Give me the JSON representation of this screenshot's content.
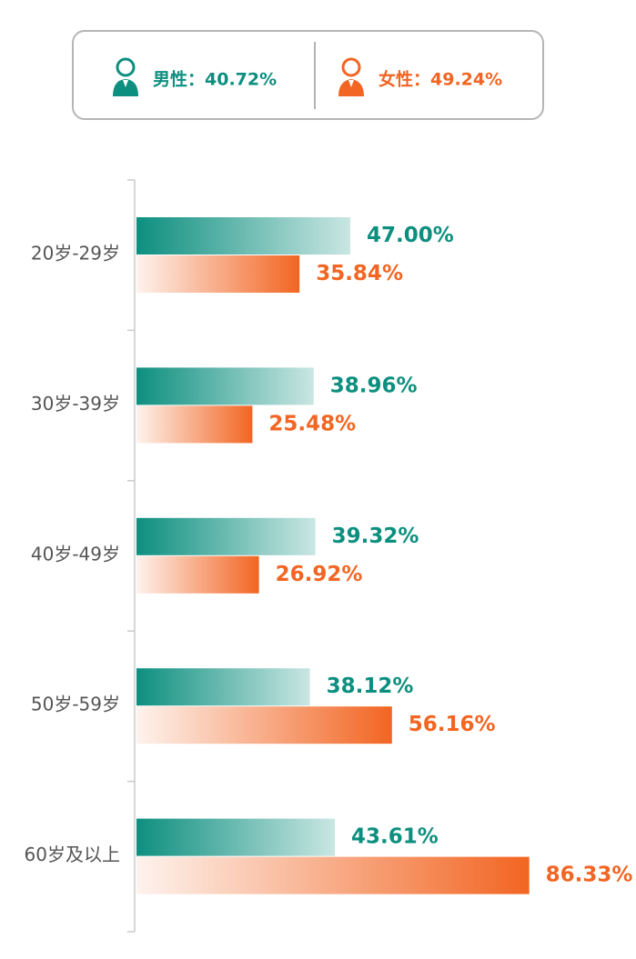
{
  "chart_data": {
    "type": "bar",
    "orientation": "horizontal",
    "categories": [
      "20岁-29岁",
      "30岁-39岁",
      "40岁-49岁",
      "50岁-59岁",
      "60岁及以上"
    ],
    "series": [
      {
        "name": "男性：40.72%",
        "color": "#0d8f7f",
        "values": [
          47.0,
          38.96,
          39.32,
          38.12,
          43.61
        ],
        "value_labels": [
          "47.00%",
          "38.96%",
          "39.32%",
          "38.12%",
          "43.61%"
        ]
      },
      {
        "name": "女性：49.24%",
        "color": "#f26522",
        "values": [
          35.84,
          25.48,
          26.92,
          56.16,
          86.33
        ],
        "value_labels": [
          "35.84%",
          "25.48%",
          "26.92%",
          "56.16%",
          "86.33%"
        ]
      }
    ]
  }
}
